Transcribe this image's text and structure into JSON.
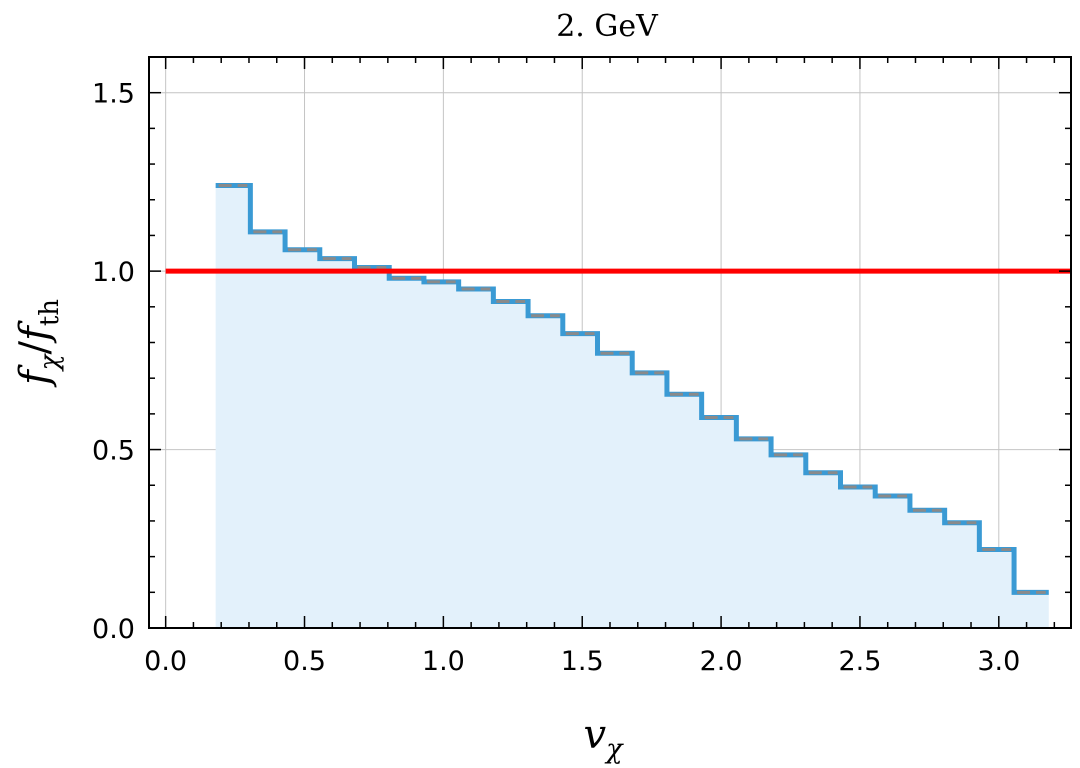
{
  "chart_data": {
    "type": "area",
    "title": "2. GeV",
    "xlabel": "v",
    "xlabel_sub": "χ",
    "ylabel_parts": {
      "num": "f",
      "num_sub": "χ",
      "slash": "/",
      "den": "f",
      "den_sub": "th"
    },
    "xlim": [
      -0.06,
      3.26
    ],
    "ylim": [
      0,
      1.6
    ],
    "xticks": [
      0.0,
      0.5,
      1.0,
      1.5,
      2.0,
      2.5,
      3.0
    ],
    "xtick_labels": [
      "0.0",
      "0.5",
      "1.0",
      "1.5",
      "2.0",
      "2.5",
      "3.0"
    ],
    "yticks": [
      0.0,
      0.5,
      1.0,
      1.5
    ],
    "ytick_labels": [
      "0.0",
      "0.5",
      "1.0",
      "1.5"
    ],
    "grid": true,
    "bin_edges": [
      0.18,
      0.305,
      0.43,
      0.555,
      0.68,
      0.805,
      0.93,
      1.055,
      1.18,
      1.305,
      1.43,
      1.555,
      1.68,
      1.805,
      1.93,
      2.055,
      2.18,
      2.305,
      2.43,
      2.555,
      2.68,
      2.805,
      2.93,
      3.055,
      3.18
    ],
    "series": [
      {
        "values": [
          1.24,
          1.11,
          1.06,
          1.035,
          1.01,
          0.98,
          0.97,
          0.95,
          0.915,
          0.875,
          0.825,
          0.77,
          0.715,
          0.655,
          0.59,
          0.53,
          0.485,
          0.435,
          0.395,
          0.37,
          0.33,
          0.295,
          0.22,
          0.1
        ]
      }
    ],
    "reference_line": {
      "y": 1.0
    },
    "colors": {
      "step": "#3a9ad4",
      "fill": "#e3f1fb",
      "dash": "#8a8a8a",
      "reference": "#ff0000",
      "grid": "#c4c4c4"
    }
  }
}
